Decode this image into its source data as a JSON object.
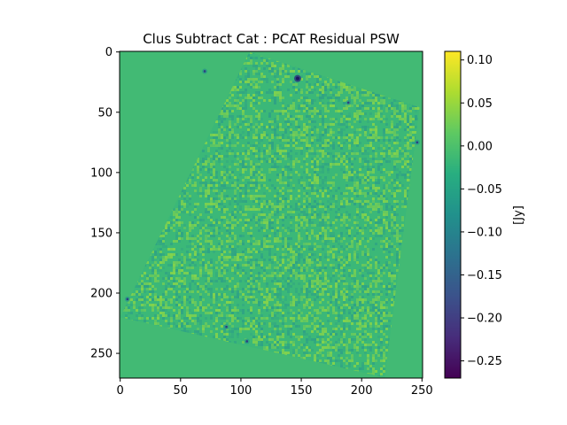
{
  "chart_data": {
    "type": "heatmap",
    "title": "Clus Subtract Cat : PCAT Residual PSW",
    "xlabel": "",
    "ylabel": "",
    "x_ticks": [
      0,
      50,
      100,
      150,
      200,
      250
    ],
    "y_ticks": [
      0,
      50,
      100,
      150,
      200,
      250
    ],
    "xlim": [
      -0.5,
      250.5
    ],
    "ylim": [
      270.5,
      -0.5
    ],
    "colormap": "viridis",
    "colorbar": {
      "label": "[Jy]",
      "range": [
        -0.27,
        0.11
      ],
      "ticks": [
        0.1,
        0.05,
        0.0,
        -0.05,
        -0.1,
        -0.15,
        -0.2,
        -0.25
      ],
      "tick_labels": [
        "0.10",
        "0.05",
        "0.00",
        "−0.05",
        "−0.10",
        "−0.15",
        "−0.20",
        "−0.25"
      ]
    },
    "background_value": 0.0,
    "residual_region_corners": [
      [
        107,
        0
      ],
      [
        248,
        46
      ],
      [
        219,
        270
      ],
      [
        0,
        220
      ]
    ],
    "bright_spots": [
      {
        "x": 147,
        "y": 22,
        "value": -0.25
      },
      {
        "x": 70,
        "y": 16,
        "value": -0.05
      },
      {
        "x": 189,
        "y": 42,
        "value": -0.06
      },
      {
        "x": 88,
        "y": 228,
        "value": -0.05
      },
      {
        "x": 6,
        "y": 205,
        "value": -0.06
      },
      {
        "x": 246,
        "y": 75,
        "value": -0.04
      },
      {
        "x": 105,
        "y": 240,
        "value": -0.04
      }
    ],
    "grid": false
  },
  "colors": {
    "background_cell": "#42ba74",
    "residual_base": "#3bb878",
    "residual_positive": "#8fd745",
    "residual_negative": "#2a9a8a",
    "spot_dark": "#2c3e80",
    "spot_core": "#1f1560"
  }
}
